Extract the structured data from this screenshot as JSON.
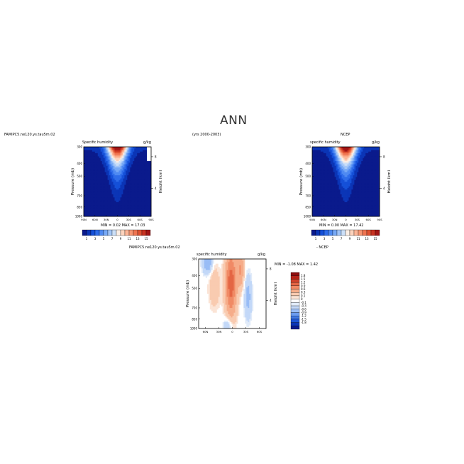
{
  "page": {
    "title": "ANN",
    "case_label": "FAMIPC5.ne120.ys.tau5m.02",
    "years": "(yrs 2000-2003)"
  },
  "colors": {
    "sequential": [
      "#0a1a8c",
      "#0b35b6",
      "#1550d8",
      "#2e6cea",
      "#4f8af2",
      "#77a9f6",
      "#a3c6f8",
      "#cbdff8",
      "#fbeee4",
      "#fdd3bd",
      "#fcb596",
      "#f79672",
      "#ef7450",
      "#df5232",
      "#c83220",
      "#a11515"
    ],
    "diverging": [
      "#0a1a8c",
      "#0b35b6",
      "#1d55d6",
      "#3f78e6",
      "#6b9cf0",
      "#99bdf6",
      "#c3d8f8",
      "#e1ebf9",
      "#ffffff",
      "#fbe4d6",
      "#f9cbb0",
      "#f6ad8a",
      "#f08a65",
      "#e46644",
      "#d0422b",
      "#b42418",
      "#8e0e0e"
    ]
  },
  "chart_data": [
    {
      "type": "heatmap",
      "panel": "model",
      "title": "Specific humidity",
      "units": "g/kg",
      "ylabel": "Pressure (mb)",
      "y2label": "Height (km)",
      "x_ticks": [
        "90N",
        "60N",
        "30N",
        "0",
        "30S",
        "60S",
        "90S"
      ],
      "y_ticks": [
        "300",
        "400",
        "500",
        "700",
        "850",
        "1000"
      ],
      "y2_ticks": [
        "8",
        "4"
      ],
      "xlim": [
        90,
        -90
      ],
      "ylim": [
        1000,
        300
      ],
      "stats": "MIN =    0.02    MAX =    17.03",
      "colorbar_labels": [
        "1",
        "3",
        "5",
        "7",
        "9",
        "11",
        "13",
        "15"
      ],
      "peak": 17.03,
      "missing_south_of": -80
    },
    {
      "type": "heatmap",
      "panel": "obs",
      "title": "specific humidity",
      "center_title": "NCEP",
      "units": "g/kg",
      "ylabel": "Pressure (mb)",
      "y2label": "Height (km)",
      "x_ticks": [
        "90N",
        "60N",
        "30N",
        "0",
        "30S",
        "60S",
        "90S"
      ],
      "y_ticks": [
        "300",
        "400",
        "500",
        "700",
        "850",
        "1000"
      ],
      "y2_ticks": [
        "8",
        "4"
      ],
      "xlim": [
        90,
        -90
      ],
      "ylim": [
        1000,
        300
      ],
      "stats": "MIN =    0.00    MAX =    17.42",
      "colorbar_labels": [
        "1",
        "3",
        "5",
        "7",
        "9",
        "11",
        "13",
        "15"
      ],
      "peak": 17.42,
      "missing_south_of": null
    },
    {
      "type": "heatmap",
      "panel": "difference",
      "case_label": "FAMIPC5.ne120.ys.tau5m.02",
      "title": "specific humidity",
      "units": "g/kg",
      "ylabel": "Pressure (mb)",
      "y2label": "Height (km)",
      "x_ticks": [
        "60N",
        "30N",
        "0",
        "30S",
        "60S"
      ],
      "y_ticks": [
        "300",
        "400",
        "500",
        "700",
        "850",
        "1000"
      ],
      "y2_ticks": [
        "8",
        "4"
      ],
      "xlim": [
        75,
        -75
      ],
      "ylim": [
        1000,
        300
      ],
      "stats": "MIN =   -1.08    MAX =    1.42",
      "minus_label": "- NCEP",
      "colorbar_labels": [
        "1.8",
        "1.5",
        "1.2",
        "0.9",
        "0.6",
        "0.3",
        "0.1",
        "0",
        "-0.1",
        "-0.3",
        "-0.6",
        "-0.9",
        "-1.2",
        "-1.5",
        "-1.8"
      ]
    }
  ]
}
